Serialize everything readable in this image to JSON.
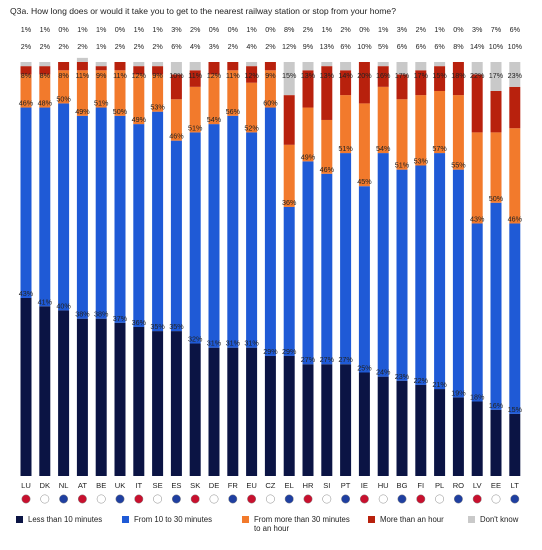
{
  "question": "Q3a. How long does or would it take you to get to the nearest railway station or stop from your home?",
  "colors": {
    "lt10": "#0b1444",
    "m10_30": "#1f5ad6",
    "m30_60": "#f27a2c",
    "gt60": "#b8210d",
    "dk": "#c9c9c9"
  },
  "chart_data": {
    "type": "bar",
    "stacked": true,
    "unit": "%",
    "ylim": [
      0,
      100
    ],
    "categories": [
      "LU",
      "DK",
      "NL",
      "AT",
      "BE",
      "UK",
      "IT",
      "SE",
      "ES",
      "SK",
      "DE",
      "FR",
      "EU",
      "CZ",
      "EL",
      "HR",
      "SI",
      "PT",
      "IE",
      "HU",
      "BG",
      "FI",
      "PL",
      "RO",
      "LV",
      "EE",
      "LT"
    ],
    "series": [
      {
        "name": "Less than 10 minutes",
        "key": "lt10",
        "values": [
          43,
          41,
          40,
          38,
          38,
          37,
          36,
          35,
          35,
          32,
          31,
          31,
          31,
          29,
          29,
          27,
          27,
          27,
          25,
          24,
          23,
          22,
          21,
          19,
          18,
          16,
          15
        ]
      },
      {
        "name": "From 10 to 30 minutes",
        "key": "m10_30",
        "values": [
          46,
          48,
          50,
          49,
          51,
          50,
          49,
          53,
          46,
          51,
          54,
          56,
          52,
          60,
          36,
          49,
          46,
          51,
          45,
          54,
          51,
          53,
          57,
          55,
          43,
          50,
          46
        ]
      },
      {
        "name": "From more than 30 minutes to an hour",
        "key": "m30_60",
        "values": [
          8,
          8,
          8,
          11,
          9,
          11,
          12,
          9,
          10,
          11,
          12,
          11,
          12,
          9,
          15,
          13,
          13,
          14,
          20,
          16,
          17,
          17,
          15,
          18,
          22,
          17,
          23
        ]
      },
      {
        "name": "More than an hour",
        "key": "gt60",
        "values": [
          2,
          2,
          2,
          2,
          1,
          2,
          2,
          2,
          6,
          4,
          3,
          2,
          4,
          2,
          12,
          9,
          13,
          6,
          10,
          5,
          6,
          6,
          6,
          8,
          14,
          10,
          10
        ]
      },
      {
        "name": "Don't know",
        "key": "dk",
        "values": [
          1,
          1,
          0,
          1,
          1,
          0,
          1,
          1,
          3,
          2,
          0,
          0,
          1,
          0,
          8,
          2,
          1,
          2,
          0,
          1,
          3,
          2,
          1,
          0,
          3,
          7,
          6
        ]
      }
    ]
  },
  "legend": [
    {
      "key": "lt10",
      "label": "Less than 10 minutes"
    },
    {
      "key": "m10_30",
      "label": "From 10 to 30 minutes"
    },
    {
      "key": "m30_60",
      "label": "From more than 30 minutes to an hour"
    },
    {
      "key": "gt60",
      "label": "More than an hour"
    },
    {
      "key": "dk",
      "label": "Don't know"
    }
  ],
  "flags": [
    "flag-luxembourg-icon",
    "flag-denmark-icon",
    "flag-netherlands-icon",
    "flag-austria-icon",
    "flag-belgium-icon",
    "flag-united-kingdom-icon",
    "flag-italy-icon",
    "flag-sweden-icon",
    "flag-spain-icon",
    "flag-slovakia-icon",
    "flag-germany-icon",
    "flag-france-icon",
    "flag-eu-icon",
    "flag-czechia-icon",
    "flag-greece-icon",
    "flag-croatia-icon",
    "flag-slovenia-icon",
    "flag-portugal-icon",
    "flag-ireland-icon",
    "flag-hungary-icon",
    "flag-bulgaria-icon",
    "flag-finland-icon",
    "flag-poland-icon",
    "flag-romania-icon",
    "flag-latvia-icon",
    "flag-estonia-icon",
    "flag-lithuania-icon"
  ]
}
